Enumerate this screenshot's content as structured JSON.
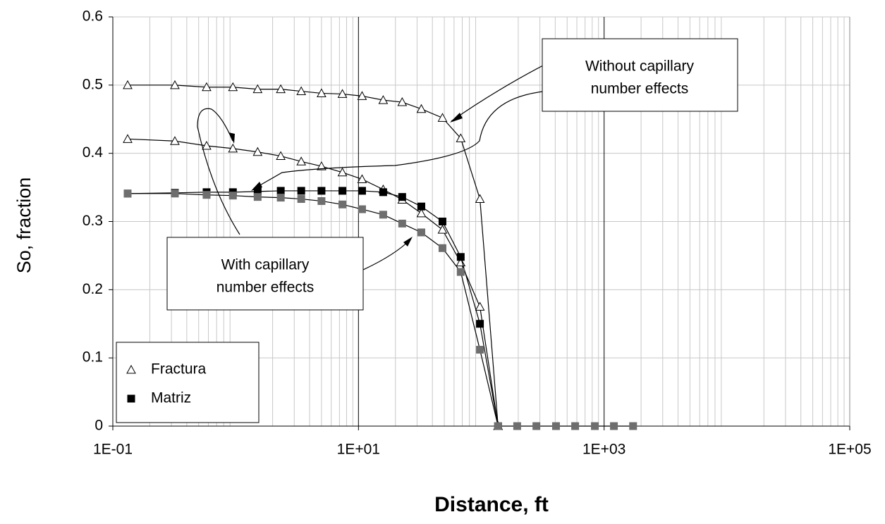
{
  "chart_data": {
    "type": "line",
    "x_label": "Distance, ft",
    "y_label": "So, fraction",
    "x_log": true,
    "grid": true,
    "xlim": [
      0.1,
      100000
    ],
    "ylim": [
      0,
      0.6
    ],
    "xticks": [
      {
        "value": 0.1,
        "label": "1E-01"
      },
      {
        "value": 10,
        "label": "1E+01"
      },
      {
        "value": 1000,
        "label": "1E+03"
      },
      {
        "value": 100000,
        "label": "1E+05"
      }
    ],
    "xminor_ticks": [
      0.2,
      0.3,
      0.4,
      0.5,
      0.6,
      0.7,
      0.8,
      0.9,
      2,
      3,
      4,
      5,
      6,
      7,
      8,
      9,
      20,
      30,
      40,
      50,
      60,
      70,
      80,
      90,
      200,
      300,
      400,
      500,
      600,
      700,
      800,
      900,
      2000,
      3000,
      4000,
      5000,
      6000,
      7000,
      8000,
      9000,
      20000,
      30000,
      40000,
      50000,
      60000,
      70000,
      80000,
      90000
    ],
    "yticks": [
      0,
      0.1,
      0.2,
      0.3,
      0.4,
      0.5,
      0.6
    ],
    "legend_position": "lower left",
    "series": [
      {
        "name": "Fractura",
        "marker": "triangle",
        "color": "#ffffff",
        "x": [
          0.132,
          0.32,
          0.58,
          0.95,
          1.51,
          2.33,
          3.42,
          5.0,
          7.4,
          10.7,
          15.9,
          22.7,
          32.5,
          48.3,
          68,
          97.5,
          137
        ],
        "values": [
          0.5,
          0.5,
          0.497,
          0.497,
          0.494,
          0.494,
          0.491,
          0.488,
          0.487,
          0.484,
          0.478,
          0.475,
          0.465,
          0.452,
          0.422,
          0.333,
          0.0
        ]
      },
      {
        "name": "Fractura",
        "marker": "triangle",
        "color": "#ffffff",
        "x": [
          0.132,
          0.32,
          0.58,
          0.95,
          1.51,
          2.33,
          3.42,
          5.0,
          7.4,
          10.7,
          15.9,
          22.7,
          32.5,
          48.3,
          68,
          97.5,
          137
        ],
        "values": [
          0.421,
          0.418,
          0.411,
          0.407,
          0.402,
          0.396,
          0.388,
          0.381,
          0.372,
          0.362,
          0.347,
          0.332,
          0.312,
          0.288,
          0.24,
          0.175,
          0.0
        ]
      },
      {
        "name": "Matriz",
        "marker": "square",
        "color": "#000000",
        "x": [
          0.132,
          0.32,
          0.58,
          0.95,
          1.51,
          2.33,
          3.42,
          5.0,
          7.4,
          10.7,
          15.9,
          22.7,
          32.5,
          48.3,
          68,
          97.5,
          137
        ],
        "values": [
          0.341,
          0.342,
          0.343,
          0.343,
          0.344,
          0.345,
          0.345,
          0.345,
          0.345,
          0.345,
          0.343,
          0.336,
          0.322,
          0.3,
          0.248,
          0.15,
          0.0
        ]
      },
      {
        "name": "Matriz",
        "marker": "square",
        "color": "#6e6e6e",
        "x": [
          0.132,
          0.32,
          0.58,
          0.95,
          1.51,
          2.33,
          3.42,
          5.0,
          7.4,
          10.7,
          15.9,
          22.7,
          32.5,
          48.3,
          68,
          97.5,
          137,
          196,
          281,
          406,
          581,
          841,
          1202,
          1722
        ],
        "values": [
          0.341,
          0.341,
          0.339,
          0.338,
          0.336,
          0.335,
          0.333,
          0.33,
          0.325,
          0.318,
          0.31,
          0.297,
          0.284,
          0.261,
          0.226,
          0.112,
          0.0,
          0,
          0,
          0,
          0,
          0,
          0,
          0
        ]
      }
    ],
    "annotations": [
      {
        "lines": [
          "Without capillary",
          "number effects"
        ]
      },
      {
        "lines": [
          "With capillary",
          "number effects"
        ]
      }
    ]
  }
}
